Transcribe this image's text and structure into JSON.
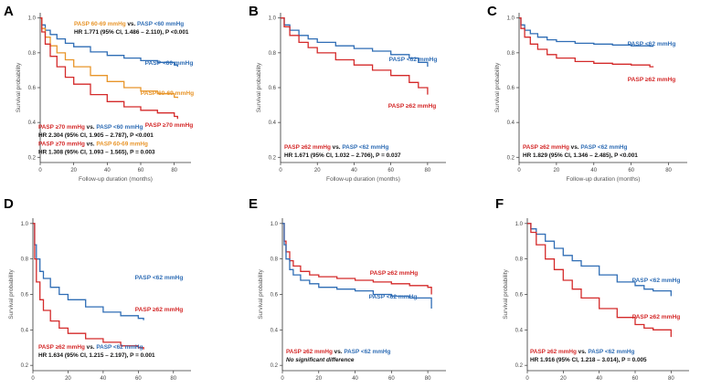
{
  "colors": {
    "blue": "#2f6db5",
    "red": "#d42a2a",
    "orange": "#e8952a",
    "black": "#111111",
    "axis": "#333333"
  },
  "chart_data": [
    {
      "panel": "A",
      "type": "line",
      "title": "",
      "xlabel": "Follow-up duration (months)",
      "ylabel": "Survival probability",
      "xlim": [
        0,
        90
      ],
      "ylim": [
        0.17,
        1.03
      ],
      "xticks": [
        "0",
        "20",
        "40",
        "60",
        "80"
      ],
      "yticks": [
        "0.2",
        "0.4",
        "0.6",
        "0.8",
        "1.0"
      ],
      "series": [
        {
          "name": "PASP <60 mmHg",
          "color": "blue",
          "x": [
            0,
            1,
            3,
            6,
            10,
            15,
            20,
            30,
            40,
            50,
            60,
            70,
            80,
            82
          ],
          "y": [
            1.0,
            0.96,
            0.93,
            0.905,
            0.88,
            0.855,
            0.835,
            0.805,
            0.785,
            0.77,
            0.755,
            0.745,
            0.73,
            0.72
          ]
        },
        {
          "name": "PASP 60-69 mmHg",
          "color": "orange",
          "x": [
            0,
            1,
            3,
            6,
            10,
            15,
            20,
            30,
            40,
            50,
            60,
            70,
            80,
            82
          ],
          "y": [
            1.0,
            0.94,
            0.89,
            0.84,
            0.8,
            0.76,
            0.72,
            0.67,
            0.635,
            0.6,
            0.58,
            0.565,
            0.545,
            0.54
          ]
        },
        {
          "name": "PASP ≥70 mmHg",
          "color": "red",
          "x": [
            0,
            1,
            3,
            6,
            10,
            15,
            20,
            30,
            40,
            50,
            60,
            70,
            80,
            82
          ],
          "y": [
            1.0,
            0.92,
            0.85,
            0.78,
            0.72,
            0.66,
            0.62,
            0.56,
            0.52,
            0.49,
            0.47,
            0.455,
            0.435,
            0.42
          ]
        }
      ],
      "curve_labels": [
        {
          "series": "PASP <60 mmHg",
          "text": "PASP <60 mmHg",
          "color": "blue"
        },
        {
          "series": "PASP 60-69 mmHg",
          "text": "PASP 60-69 mmHg",
          "color": "orange"
        },
        {
          "series": "PASP ≥70 mmHg",
          "text": "PASP ≥70 mmHg",
          "color": "red"
        }
      ],
      "annotations": [
        {
          "group": "top",
          "lines": [
            [
              {
                "t": "PASP 60-69 mmHg",
                "c": "orange"
              },
              {
                "t": " vs. ",
                "c": "black"
              },
              {
                "t": "PASP <60 mmHg",
                "c": "blue"
              }
            ],
            [
              {
                "t": "HR 1.771 (95% CI, 1.486 – 2.110), P <0.001",
                "c": "black"
              }
            ]
          ]
        },
        {
          "group": "bottom",
          "lines": [
            [
              {
                "t": "PASP ≥70 mmHg",
                "c": "red"
              },
              {
                "t": " vs. ",
                "c": "black"
              },
              {
                "t": "PASP <60 mmHg",
                "c": "blue"
              }
            ],
            [
              {
                "t": "HR 2.304 (95% CI, 1.905 – 2.787), P <0.001",
                "c": "black"
              }
            ],
            [
              {
                "t": "PASP ≥70 mmHg",
                "c": "red"
              },
              {
                "t": " vs. ",
                "c": "black"
              },
              {
                "t": "PASP 60-69 mmHg",
                "c": "orange"
              }
            ],
            [
              {
                "t": "HR 1.308 (95% CI, 1.093 – 1.565), P = 0.003",
                "c": "black"
              }
            ]
          ]
        }
      ]
    },
    {
      "panel": "B",
      "type": "line",
      "title": "",
      "xlabel": "Follow-up duration (months)",
      "ylabel": "Survival probability",
      "xlim": [
        0,
        90
      ],
      "ylim": [
        0.17,
        1.03
      ],
      "xticks": [
        "0",
        "20",
        "40",
        "60",
        "80"
      ],
      "yticks": [
        "0.2",
        "0.4",
        "0.6",
        "0.8",
        "1.0"
      ],
      "series": [
        {
          "name": "PASP <62 mmHg",
          "color": "blue",
          "x": [
            0,
            2,
            5,
            10,
            15,
            20,
            30,
            40,
            50,
            60,
            70,
            75,
            80
          ],
          "y": [
            1.0,
            0.96,
            0.93,
            0.9,
            0.88,
            0.86,
            0.84,
            0.825,
            0.81,
            0.79,
            0.77,
            0.745,
            0.72
          ]
        },
        {
          "name": "PASP ≥62 mmHg",
          "color": "red",
          "x": [
            0,
            2,
            5,
            10,
            15,
            20,
            30,
            40,
            50,
            60,
            70,
            75,
            80
          ],
          "y": [
            1.0,
            0.95,
            0.9,
            0.86,
            0.83,
            0.8,
            0.76,
            0.73,
            0.7,
            0.67,
            0.63,
            0.6,
            0.56
          ]
        }
      ],
      "curve_labels": [
        {
          "series": "PASP <62 mmHg",
          "text": "PASP <62 mmHg",
          "color": "blue"
        },
        {
          "series": "PASP ≥62 mmHg",
          "text": "PASP ≥62 mmHg",
          "color": "red"
        }
      ],
      "annotations": [
        {
          "group": "bottom",
          "lines": [
            [
              {
                "t": "PASP ≥62 mmHg",
                "c": "red"
              },
              {
                "t": " vs. ",
                "c": "black"
              },
              {
                "t": "PASP <62 mmHg",
                "c": "blue"
              }
            ],
            [
              {
                "t": "HR 1.671 (95% CI, 1.032 – 2.706), P = 0.037",
                "c": "black"
              }
            ]
          ]
        }
      ]
    },
    {
      "panel": "C",
      "type": "line",
      "title": "",
      "xlabel": "Follow-up duration (months)",
      "ylabel": "Survival probability",
      "xlim": [
        0,
        90
      ],
      "ylim": [
        0.17,
        1.03
      ],
      "xticks": [
        "0",
        "20",
        "40",
        "60",
        "80"
      ],
      "yticks": [
        "0.2",
        "0.4",
        "0.6",
        "0.8",
        "1.0"
      ],
      "series": [
        {
          "name": "PASP <62 mmHg",
          "color": "blue",
          "x": [
            0,
            1,
            3,
            6,
            10,
            15,
            20,
            30,
            40,
            50,
            60,
            70,
            72
          ],
          "y": [
            1.0,
            0.96,
            0.93,
            0.91,
            0.89,
            0.875,
            0.865,
            0.855,
            0.85,
            0.845,
            0.84,
            0.838,
            0.838
          ]
        },
        {
          "name": "PASP ≥62 mmHg",
          "color": "red",
          "x": [
            0,
            1,
            3,
            6,
            10,
            15,
            20,
            30,
            40,
            50,
            60,
            70,
            72
          ],
          "y": [
            1.0,
            0.94,
            0.89,
            0.85,
            0.82,
            0.79,
            0.77,
            0.75,
            0.74,
            0.735,
            0.73,
            0.72,
            0.72
          ]
        }
      ],
      "curve_labels": [
        {
          "series": "PASP <62 mmHg",
          "text": "PASP <62 mmHg",
          "color": "blue"
        },
        {
          "series": "PASP ≥62 mmHg",
          "text": "PASP ≥62 mmHg",
          "color": "red"
        }
      ],
      "annotations": [
        {
          "group": "bottom",
          "lines": [
            [
              {
                "t": "PASP ≥62 mmHg",
                "c": "red"
              },
              {
                "t": " vs. ",
                "c": "black"
              },
              {
                "t": "PASP <62 mmHg",
                "c": "blue"
              }
            ],
            [
              {
                "t": "HR 1.829 (95% CI, 1.346 – 2.485), P <0.001",
                "c": "black"
              }
            ]
          ]
        }
      ]
    },
    {
      "panel": "D",
      "type": "line",
      "title": "",
      "xlabel": "Follow-up duration (months)",
      "ylabel": "Survival probability",
      "xlim": [
        0,
        90
      ],
      "ylim": [
        0.17,
        1.03
      ],
      "xticks": [
        "0",
        "20",
        "40",
        "60",
        "80"
      ],
      "yticks": [
        "0.2",
        "0.4",
        "0.6",
        "0.8",
        "1.0"
      ],
      "series": [
        {
          "name": "PASP <62 mmHg",
          "color": "blue",
          "x": [
            0,
            1,
            2,
            4,
            6,
            10,
            15,
            20,
            30,
            40,
            50,
            60,
            63
          ],
          "y": [
            1.0,
            0.88,
            0.8,
            0.73,
            0.69,
            0.64,
            0.6,
            0.57,
            0.53,
            0.5,
            0.48,
            0.465,
            0.455
          ]
        },
        {
          "name": "PASP ≥62 mmHg",
          "color": "red",
          "x": [
            0,
            1,
            2,
            4,
            6,
            10,
            15,
            20,
            30,
            40,
            50,
            60,
            63
          ],
          "y": [
            1.0,
            0.8,
            0.67,
            0.57,
            0.51,
            0.45,
            0.41,
            0.38,
            0.35,
            0.33,
            0.31,
            0.3,
            0.29
          ]
        }
      ],
      "curve_labels": [
        {
          "series": "PASP <62 mmHg",
          "text": "PASP <62 mmHg",
          "color": "blue"
        },
        {
          "series": "PASP ≥62 mmHg",
          "text": "PASP ≥62 mmHg",
          "color": "red"
        }
      ],
      "annotations": [
        {
          "group": "bottom",
          "lines": [
            [
              {
                "t": "PASP ≥62 mmHg",
                "c": "red"
              },
              {
                "t": " vs. ",
                "c": "black"
              },
              {
                "t": "PASP <62 mmHg",
                "c": "blue"
              }
            ],
            [
              {
                "t": "HR 1.634 (95% CI, 1.215 – 2.197), P = 0.001",
                "c": "black"
              }
            ]
          ]
        }
      ]
    },
    {
      "panel": "E",
      "type": "line",
      "title": "",
      "xlabel": "Follow-up duration (months)",
      "ylabel": "Survival probability",
      "xlim": [
        0,
        90
      ],
      "ylim": [
        0.17,
        1.03
      ],
      "xticks": [
        "0",
        "20",
        "40",
        "60",
        "80"
      ],
      "yticks": [
        "0.2",
        "0.4",
        "0.6",
        "0.8",
        "1.0"
      ],
      "series": [
        {
          "name": "PASP ≥62 mmHg",
          "color": "red",
          "x": [
            0,
            1,
            2,
            4,
            6,
            10,
            15,
            20,
            30,
            40,
            50,
            60,
            70,
            80,
            82
          ],
          "y": [
            1.0,
            0.9,
            0.84,
            0.79,
            0.76,
            0.73,
            0.71,
            0.7,
            0.69,
            0.68,
            0.67,
            0.66,
            0.65,
            0.64,
            0.6
          ]
        },
        {
          "name": "PASP <62 mmHg",
          "color": "blue",
          "x": [
            0,
            1,
            2,
            4,
            6,
            10,
            15,
            20,
            30,
            40,
            50,
            60,
            70,
            80,
            82
          ],
          "y": [
            1.0,
            0.88,
            0.8,
            0.74,
            0.71,
            0.68,
            0.66,
            0.64,
            0.63,
            0.62,
            0.6,
            0.59,
            0.58,
            0.58,
            0.52
          ]
        }
      ],
      "curve_labels": [
        {
          "series": "PASP ≥62 mmHg",
          "text": "PASP ≥62 mmHg",
          "color": "red"
        },
        {
          "series": "PASP <62 mmHg",
          "text": "PASP <62 mmHg",
          "color": "blue"
        }
      ],
      "annotations": [
        {
          "group": "bottom",
          "lines": [
            [
              {
                "t": "PASP ≥62 mmHg",
                "c": "red"
              },
              {
                "t": " vs. ",
                "c": "black"
              },
              {
                "t": "PASP <62 mmHg",
                "c": "blue"
              }
            ],
            [
              {
                "t": "No significant difference",
                "c": "black",
                "italic": true
              }
            ]
          ]
        }
      ]
    },
    {
      "panel": "F",
      "type": "line",
      "title": "",
      "xlabel": "Follow-up duration (months)",
      "ylabel": "Survival probability",
      "xlim": [
        0,
        90
      ],
      "ylim": [
        0.17,
        1.03
      ],
      "xticks": [
        "0",
        "20",
        "40",
        "60",
        "80"
      ],
      "yticks": [
        "0.2",
        "0.4",
        "0.6",
        "0.8",
        "1.0"
      ],
      "series": [
        {
          "name": "PASP <62 mmHg",
          "color": "blue",
          "x": [
            0,
            2,
            5,
            10,
            15,
            20,
            25,
            30,
            40,
            50,
            60,
            65,
            70,
            75,
            80
          ],
          "y": [
            1.0,
            0.97,
            0.94,
            0.9,
            0.86,
            0.82,
            0.79,
            0.76,
            0.71,
            0.67,
            0.65,
            0.63,
            0.62,
            0.62,
            0.59
          ]
        },
        {
          "name": "PASP ≥62 mmHg",
          "color": "red",
          "x": [
            0,
            2,
            5,
            10,
            15,
            20,
            25,
            30,
            40,
            50,
            60,
            65,
            70,
            75,
            80
          ],
          "y": [
            1.0,
            0.95,
            0.88,
            0.8,
            0.74,
            0.68,
            0.63,
            0.58,
            0.52,
            0.47,
            0.43,
            0.41,
            0.4,
            0.4,
            0.36
          ]
        }
      ],
      "curve_labels": [
        {
          "series": "PASP <62 mmHg",
          "text": "PASP <62 mmHg",
          "color": "blue"
        },
        {
          "series": "PASP ≥62 mmHg",
          "text": "PASP ≥62 mmHg",
          "color": "red"
        }
      ],
      "annotations": [
        {
          "group": "bottom",
          "lines": [
            [
              {
                "t": "PASP ≥62 mmHg",
                "c": "red"
              },
              {
                "t": " vs. ",
                "c": "black"
              },
              {
                "t": "PASP <62 mmHg",
                "c": "blue"
              }
            ],
            [
              {
                "t": "HR 1.916 (95% CI, 1.218 – 3.014), P = 0.005",
                "c": "black"
              }
            ]
          ]
        }
      ]
    }
  ]
}
